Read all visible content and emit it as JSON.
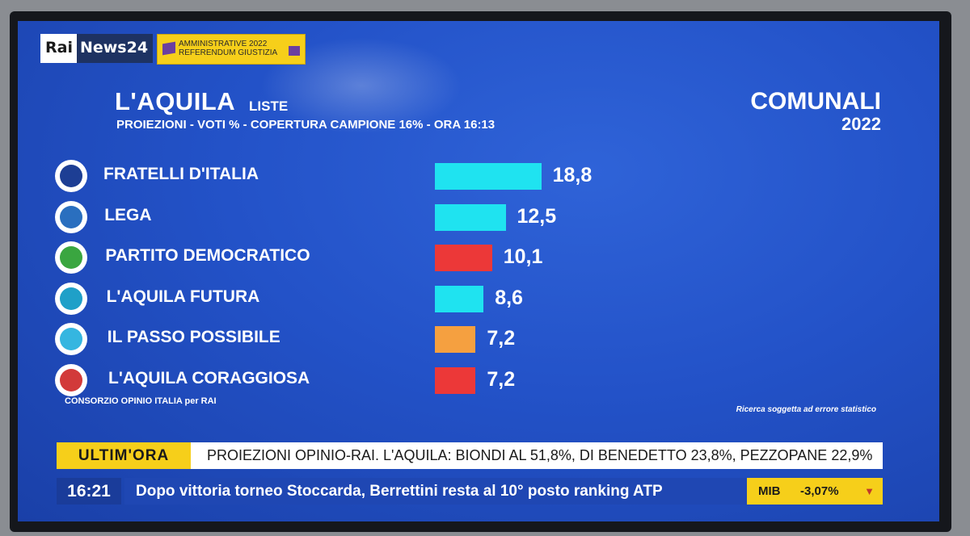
{
  "header": {
    "logo_rai": "Rai",
    "logo_news": "News24",
    "badge_line1": "AMMINISTRATIVE 2022",
    "badge_line2": "REFERENDUM GIUSTIZIA",
    "title": "L'AQUILA",
    "title_suffix": "LISTE",
    "subtitle": "PROIEZIONI  - VOTI %  - COPERTURA CAMPIONE 16% - ORA 16:13",
    "comunali": "COMUNALI",
    "comunali_year": "2022"
  },
  "chart_data": {
    "type": "bar",
    "orientation": "horizontal",
    "categories": [
      "FRATELLI D'ITALIA",
      "LEGA",
      "PARTITO DEMOCRATICO",
      "L'AQUILA FUTURA",
      "IL PASSO POSSIBILE",
      "L'AQUILA CORAGGIOSA"
    ],
    "values": [
      18.8,
      12.5,
      10.1,
      8.6,
      7.2,
      7.2
    ],
    "labels": [
      "18,8",
      "12,5",
      "10,1",
      "8,6",
      "7,2",
      "7,2"
    ],
    "colors": [
      "#1fe3f0",
      "#1fe3f0",
      "#ec3838",
      "#1fe3f0",
      "#f5a040",
      "#ec3838"
    ],
    "icon_colors": [
      "#1d3e94",
      "#2a6fbf",
      "#3aa640",
      "#1fa0c8",
      "#35b6e0",
      "#d23a3a"
    ],
    "grid": false,
    "legend": "none"
  },
  "footer": {
    "consorzio": "CONSORZIO OPINIO ITALIA per RAI",
    "ricerca": "Ricerca soggetta ad errore statistico"
  },
  "ticker": {
    "ultim_label": "ULTIM'ORA",
    "ultim_text": "PROIEZIONI OPINIO-RAI. L'AQUILA: BIONDI AL 51,8%, DI  BENEDETTO 23,8%, PEZZOPANE 22,9%",
    "time": "16:21",
    "news": "Dopo vittoria torneo Stoccarda, Berrettini resta al 10° posto ranking ATP",
    "mib_label": "MIB",
    "mib_value": "-3,07%",
    "mib_arrow": "▼"
  }
}
